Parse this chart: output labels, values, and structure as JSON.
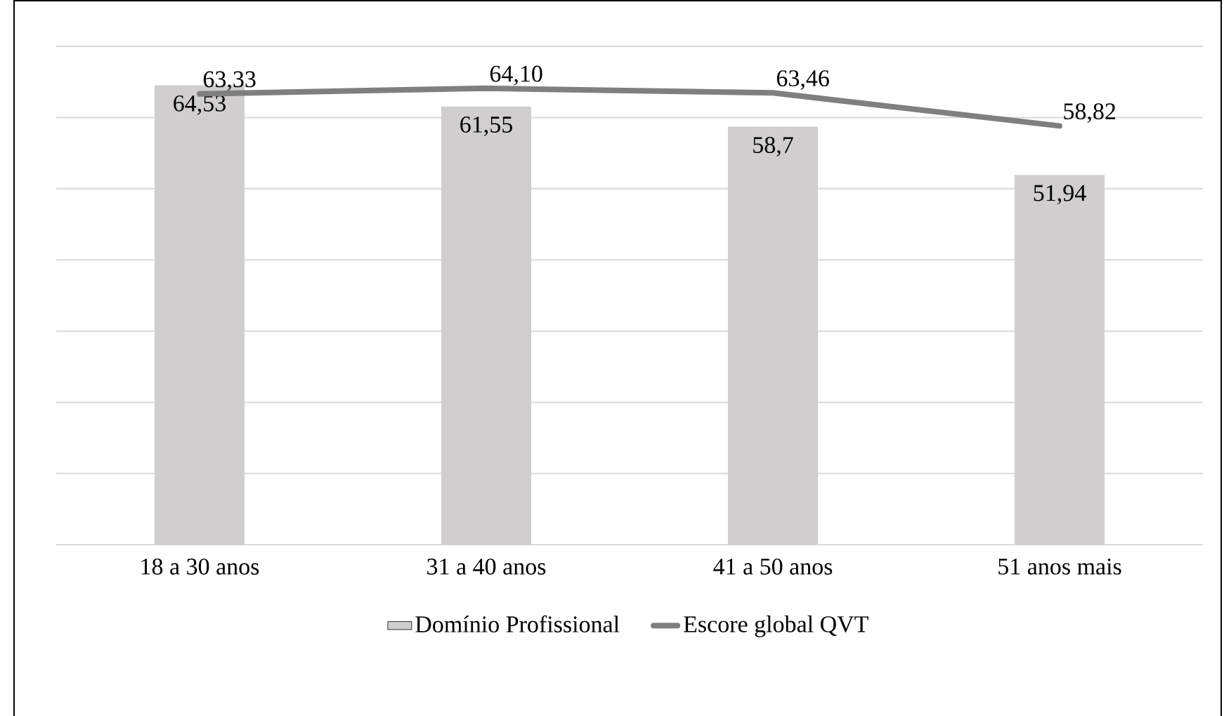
{
  "chart_data": {
    "type": "bar",
    "categories": [
      "18 a 30 anos",
      "31 a 40 anos",
      "41 a 50 anos",
      "51 anos mais"
    ],
    "series": [
      {
        "name": "Domínio Profissional",
        "color": "#d0cecf",
        "values": [
          64.53,
          61.55,
          58.7,
          51.94
        ],
        "value_labels": [
          "64,53",
          "61,55",
          "58,7",
          "51,94"
        ]
      },
      {
        "name": "Escore global QVT",
        "type": "line",
        "color": "#7f7f7f",
        "values": [
          63.33,
          64.1,
          63.46,
          58.82
        ],
        "value_labels": [
          "63,33",
          "64,10",
          "63,46",
          "58,82"
        ]
      }
    ],
    "ylim": [
      0,
      70
    ],
    "yticks": [
      {
        "value": 0,
        "label": null
      },
      {
        "value": 10,
        "label": null
      },
      {
        "value": 20,
        "label": null
      },
      {
        "value": 30,
        "label": null
      },
      {
        "value": 40,
        "label": null
      },
      {
        "value": 50,
        "label": null
      },
      {
        "value": 60,
        "label": null
      },
      {
        "value": 70,
        "label": null
      }
    ],
    "tick_labels": "x",
    "grid": "y",
    "legend": "bottom",
    "marker": "none",
    "line_style": "solid"
  }
}
